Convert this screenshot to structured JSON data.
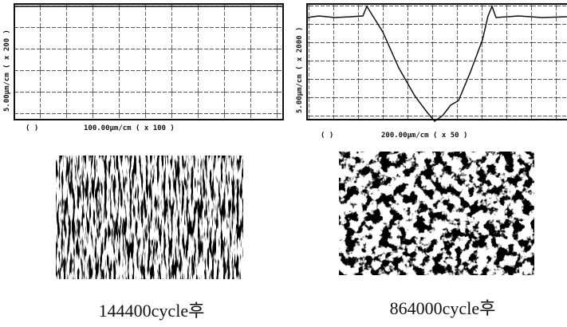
{
  "panels": [
    {
      "y_label": "5.00μm/cm  ( x 200 )",
      "x_label": "100.00μm/cm   ( x 100 )",
      "corner": "( )",
      "caption": "144400cycle후"
    },
    {
      "y_label": "5.00μm/cm  ( x 2000 )",
      "x_label": "200.00μm/cm   ( x 50 )",
      "corner": "( )",
      "caption": "864000cycle후"
    }
  ]
}
